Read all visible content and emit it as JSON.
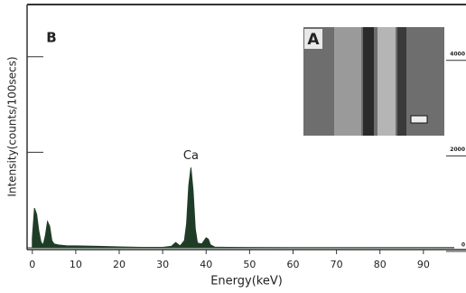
{
  "chart_data": {
    "type": "area",
    "panel_label": "B",
    "inset_label": "A",
    "annotation": "Ca",
    "xlabel": "Energy(keV)",
    "ylabel": "Intensity(counts/100secs)",
    "x": [
      0,
      0.5,
      1,
      1.5,
      2,
      2.5,
      3,
      3.5,
      4,
      4.5,
      5,
      6,
      8,
      10,
      15,
      20,
      25,
      30,
      32,
      33,
      34,
      35,
      35.5,
      36,
      36.5,
      37,
      37.5,
      38,
      39,
      40,
      40.5,
      41,
      42,
      45,
      50,
      60,
      70,
      80,
      90,
      97
    ],
    "values": [
      200,
      830,
      700,
      350,
      120,
      60,
      250,
      550,
      450,
      150,
      80,
      60,
      40,
      40,
      30,
      20,
      10,
      10,
      30,
      110,
      40,
      150,
      500,
      1300,
      1680,
      1200,
      400,
      100,
      80,
      210,
      180,
      60,
      15,
      10,
      8,
      5,
      5,
      5,
      5,
      5
    ],
    "color": "#1f3d26",
    "xlim": [
      -1.2,
      99.8
    ],
    "xticks": [
      0,
      10,
      20,
      30,
      40,
      50,
      60,
      70,
      80,
      90
    ],
    "ylim": [
      0,
      5000
    ],
    "yticks": [
      0,
      2000,
      4000
    ]
  }
}
